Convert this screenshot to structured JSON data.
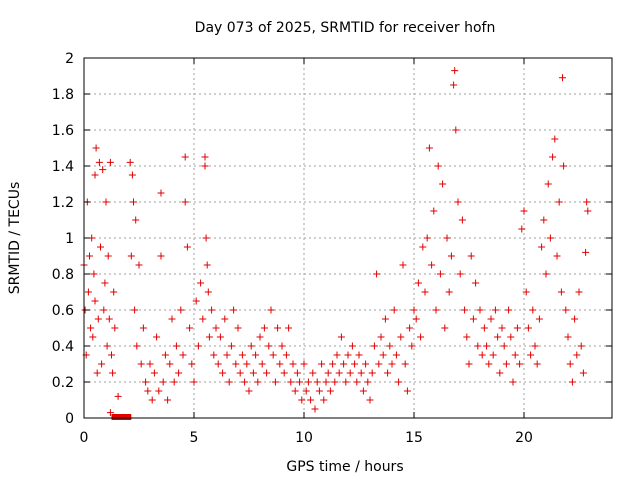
{
  "chart_data": {
    "type": "scatter",
    "title": "Day 073 of 2025, SRMTID for receiver hofn",
    "xlabel": "GPS time / hours",
    "ylabel": "SRMTID / TECUs",
    "xlim": [
      0,
      24
    ],
    "ylim": [
      0,
      2
    ],
    "xticks": [
      0,
      5,
      10,
      15,
      20
    ],
    "xtick_labels": [
      "0",
      "5",
      "10",
      "15",
      "20"
    ],
    "yticks": [
      0,
      0.2,
      0.4,
      0.6,
      0.8,
      1,
      1.2,
      1.4,
      1.6,
      1.8,
      2
    ],
    "ytick_labels": [
      "0",
      "0.2",
      "0.4",
      "0.6",
      "0.8",
      "1",
      "1.2",
      "1.4",
      "1.6",
      "1.8",
      "2"
    ],
    "grid": true,
    "marker": "+",
    "color": "#e00000",
    "gap_bar": {
      "x_start": 1.25,
      "x_end": 2.15,
      "y": 0
    },
    "series": [
      {
        "name": "SRMTID",
        "points": [
          [
            0.0,
            0.85
          ],
          [
            0.05,
            0.6
          ],
          [
            0.1,
            0.35
          ],
          [
            0.15,
            1.2
          ],
          [
            0.2,
            0.7
          ],
          [
            0.25,
            0.9
          ],
          [
            0.3,
            0.5
          ],
          [
            0.35,
            1.0
          ],
          [
            0.4,
            0.45
          ],
          [
            0.45,
            0.8
          ],
          [
            0.5,
            1.35
          ],
          [
            0.5,
            0.65
          ],
          [
            0.55,
            1.5
          ],
          [
            0.6,
            0.25
          ],
          [
            0.65,
            0.55
          ],
          [
            0.7,
            1.42
          ],
          [
            0.75,
            0.95
          ],
          [
            0.8,
            0.3
          ],
          [
            0.85,
            1.38
          ],
          [
            0.9,
            0.6
          ],
          [
            0.95,
            0.75
          ],
          [
            1.0,
            1.2
          ],
          [
            1.05,
            0.4
          ],
          [
            1.1,
            0.9
          ],
          [
            1.15,
            0.55
          ],
          [
            1.2,
            1.42
          ],
          [
            1.25,
            0.35
          ],
          [
            1.3,
            0.25
          ],
          [
            1.35,
            0.7
          ],
          [
            1.4,
            0.5
          ],
          [
            1.2,
            0.03
          ],
          [
            1.55,
            0.12
          ],
          [
            2.1,
            1.42
          ],
          [
            2.15,
            0.9
          ],
          [
            2.2,
            1.35
          ],
          [
            2.25,
            1.2
          ],
          [
            2.3,
            0.6
          ],
          [
            2.35,
            1.1
          ],
          [
            2.4,
            0.4
          ],
          [
            2.5,
            0.85
          ],
          [
            2.6,
            0.3
          ],
          [
            2.7,
            0.5
          ],
          [
            2.8,
            0.2
          ],
          [
            2.9,
            0.15
          ],
          [
            3.0,
            0.3
          ],
          [
            3.1,
            0.1
          ],
          [
            3.2,
            0.25
          ],
          [
            3.3,
            0.45
          ],
          [
            3.4,
            0.15
          ],
          [
            3.5,
            1.25
          ],
          [
            3.5,
            0.9
          ],
          [
            3.6,
            0.2
          ],
          [
            3.7,
            0.35
          ],
          [
            3.8,
            0.1
          ],
          [
            3.9,
            0.3
          ],
          [
            4.0,
            0.55
          ],
          [
            4.1,
            0.2
          ],
          [
            4.2,
            0.4
          ],
          [
            4.3,
            0.25
          ],
          [
            4.4,
            0.6
          ],
          [
            4.5,
            0.35
          ],
          [
            4.6,
            1.45
          ],
          [
            4.6,
            1.2
          ],
          [
            4.7,
            0.95
          ],
          [
            4.8,
            0.5
          ],
          [
            4.9,
            0.3
          ],
          [
            5.0,
            0.2
          ],
          [
            5.1,
            0.65
          ],
          [
            5.2,
            0.4
          ],
          [
            5.3,
            0.75
          ],
          [
            5.4,
            0.55
          ],
          [
            5.5,
            1.45
          ],
          [
            5.5,
            1.4
          ],
          [
            5.55,
            1.0
          ],
          [
            5.6,
            0.85
          ],
          [
            5.65,
            0.7
          ],
          [
            5.7,
            0.45
          ],
          [
            5.8,
            0.6
          ],
          [
            5.9,
            0.35
          ],
          [
            6.0,
            0.5
          ],
          [
            6.1,
            0.3
          ],
          [
            6.2,
            0.45
          ],
          [
            6.3,
            0.25
          ],
          [
            6.4,
            0.55
          ],
          [
            6.5,
            0.35
          ],
          [
            6.6,
            0.2
          ],
          [
            6.7,
            0.4
          ],
          [
            6.8,
            0.6
          ],
          [
            6.9,
            0.3
          ],
          [
            7.0,
            0.5
          ],
          [
            7.1,
            0.25
          ],
          [
            7.2,
            0.35
          ],
          [
            7.3,
            0.2
          ],
          [
            7.4,
            0.3
          ],
          [
            7.5,
            0.15
          ],
          [
            7.6,
            0.4
          ],
          [
            7.7,
            0.25
          ],
          [
            7.8,
            0.35
          ],
          [
            7.9,
            0.2
          ],
          [
            8.0,
            0.45
          ],
          [
            8.1,
            0.3
          ],
          [
            8.2,
            0.5
          ],
          [
            8.3,
            0.25
          ],
          [
            8.4,
            0.4
          ],
          [
            8.5,
            0.6
          ],
          [
            8.6,
            0.35
          ],
          [
            8.7,
            0.2
          ],
          [
            8.8,
            0.5
          ],
          [
            8.9,
            0.3
          ],
          [
            9.0,
            0.4
          ],
          [
            9.1,
            0.25
          ],
          [
            9.2,
            0.35
          ],
          [
            9.3,
            0.5
          ],
          [
            9.4,
            0.2
          ],
          [
            9.5,
            0.3
          ],
          [
            9.6,
            0.15
          ],
          [
            9.7,
            0.25
          ],
          [
            9.8,
            0.2
          ],
          [
            9.9,
            0.1
          ],
          [
            10.0,
            0.3
          ],
          [
            10.1,
            0.15
          ],
          [
            10.2,
            0.2
          ],
          [
            10.3,
            0.1
          ],
          [
            10.4,
            0.25
          ],
          [
            10.5,
            0.05
          ],
          [
            10.6,
            0.2
          ],
          [
            10.7,
            0.15
          ],
          [
            10.8,
            0.3
          ],
          [
            10.9,
            0.1
          ],
          [
            11.0,
            0.2
          ],
          [
            11.1,
            0.25
          ],
          [
            11.2,
            0.15
          ],
          [
            11.3,
            0.3
          ],
          [
            11.4,
            0.2
          ],
          [
            11.5,
            0.35
          ],
          [
            11.6,
            0.25
          ],
          [
            11.7,
            0.45
          ],
          [
            11.8,
            0.3
          ],
          [
            11.9,
            0.2
          ],
          [
            12.0,
            0.35
          ],
          [
            12.1,
            0.25
          ],
          [
            12.2,
            0.4
          ],
          [
            12.3,
            0.3
          ],
          [
            12.4,
            0.2
          ],
          [
            12.5,
            0.35
          ],
          [
            12.6,
            0.25
          ],
          [
            12.7,
            0.15
          ],
          [
            12.8,
            0.3
          ],
          [
            12.9,
            0.2
          ],
          [
            13.0,
            0.1
          ],
          [
            13.1,
            0.25
          ],
          [
            13.2,
            0.4
          ],
          [
            13.3,
            0.8
          ],
          [
            13.4,
            0.3
          ],
          [
            13.5,
            0.45
          ],
          [
            13.6,
            0.35
          ],
          [
            13.7,
            0.55
          ],
          [
            13.8,
            0.25
          ],
          [
            13.9,
            0.4
          ],
          [
            14.0,
            0.3
          ],
          [
            14.1,
            0.6
          ],
          [
            14.2,
            0.35
          ],
          [
            14.3,
            0.2
          ],
          [
            14.4,
            0.45
          ],
          [
            14.5,
            0.85
          ],
          [
            14.6,
            0.3
          ],
          [
            14.7,
            0.15
          ],
          [
            14.8,
            0.5
          ],
          [
            14.9,
            0.4
          ],
          [
            15.0,
            0.6
          ],
          [
            15.1,
            0.55
          ],
          [
            15.2,
            0.75
          ],
          [
            15.3,
            0.45
          ],
          [
            15.4,
            0.95
          ],
          [
            15.5,
            0.7
          ],
          [
            15.6,
            1.0
          ],
          [
            15.7,
            1.5
          ],
          [
            15.8,
            0.85
          ],
          [
            15.9,
            1.15
          ],
          [
            16.0,
            0.6
          ],
          [
            16.1,
            1.4
          ],
          [
            16.2,
            0.8
          ],
          [
            16.3,
            1.3
          ],
          [
            16.4,
            0.5
          ],
          [
            16.5,
            1.0
          ],
          [
            16.6,
            0.7
          ],
          [
            16.7,
            0.9
          ],
          [
            16.8,
            1.85
          ],
          [
            16.85,
            1.93
          ],
          [
            16.9,
            1.6
          ],
          [
            17.0,
            1.2
          ],
          [
            17.1,
            0.8
          ],
          [
            17.2,
            1.1
          ],
          [
            17.3,
            0.6
          ],
          [
            17.4,
            0.45
          ],
          [
            17.5,
            0.3
          ],
          [
            17.6,
            0.9
          ],
          [
            17.7,
            0.55
          ],
          [
            17.8,
            0.75
          ],
          [
            17.9,
            0.4
          ],
          [
            18.0,
            0.6
          ],
          [
            18.1,
            0.35
          ],
          [
            18.2,
            0.5
          ],
          [
            18.3,
            0.4
          ],
          [
            18.4,
            0.3
          ],
          [
            18.5,
            0.55
          ],
          [
            18.6,
            0.35
          ],
          [
            18.7,
            0.6
          ],
          [
            18.8,
            0.45
          ],
          [
            18.9,
            0.25
          ],
          [
            19.0,
            0.5
          ],
          [
            19.1,
            0.4
          ],
          [
            19.2,
            0.3
          ],
          [
            19.3,
            0.6
          ],
          [
            19.4,
            0.45
          ],
          [
            19.5,
            0.2
          ],
          [
            19.6,
            0.35
          ],
          [
            19.7,
            0.5
          ],
          [
            19.8,
            0.3
          ],
          [
            19.9,
            1.05
          ],
          [
            20.0,
            1.15
          ],
          [
            20.1,
            0.7
          ],
          [
            20.2,
            0.5
          ],
          [
            20.3,
            0.35
          ],
          [
            20.4,
            0.6
          ],
          [
            20.5,
            0.4
          ],
          [
            20.6,
            0.3
          ],
          [
            20.7,
            0.55
          ],
          [
            20.8,
            0.95
          ],
          [
            20.9,
            1.1
          ],
          [
            21.0,
            0.8
          ],
          [
            21.1,
            1.3
          ],
          [
            21.2,
            1.0
          ],
          [
            21.3,
            1.45
          ],
          [
            21.4,
            1.55
          ],
          [
            21.5,
            0.9
          ],
          [
            21.6,
            1.2
          ],
          [
            21.7,
            0.7
          ],
          [
            21.75,
            1.89
          ],
          [
            21.8,
            1.4
          ],
          [
            21.9,
            0.6
          ],
          [
            22.0,
            0.45
          ],
          [
            22.1,
            0.3
          ],
          [
            22.2,
            0.2
          ],
          [
            22.3,
            0.55
          ],
          [
            22.4,
            0.35
          ],
          [
            22.5,
            0.7
          ],
          [
            22.6,
            0.4
          ],
          [
            22.7,
            0.25
          ],
          [
            22.8,
            0.92
          ],
          [
            22.85,
            1.2
          ],
          [
            22.9,
            1.15
          ]
        ]
      }
    ]
  }
}
